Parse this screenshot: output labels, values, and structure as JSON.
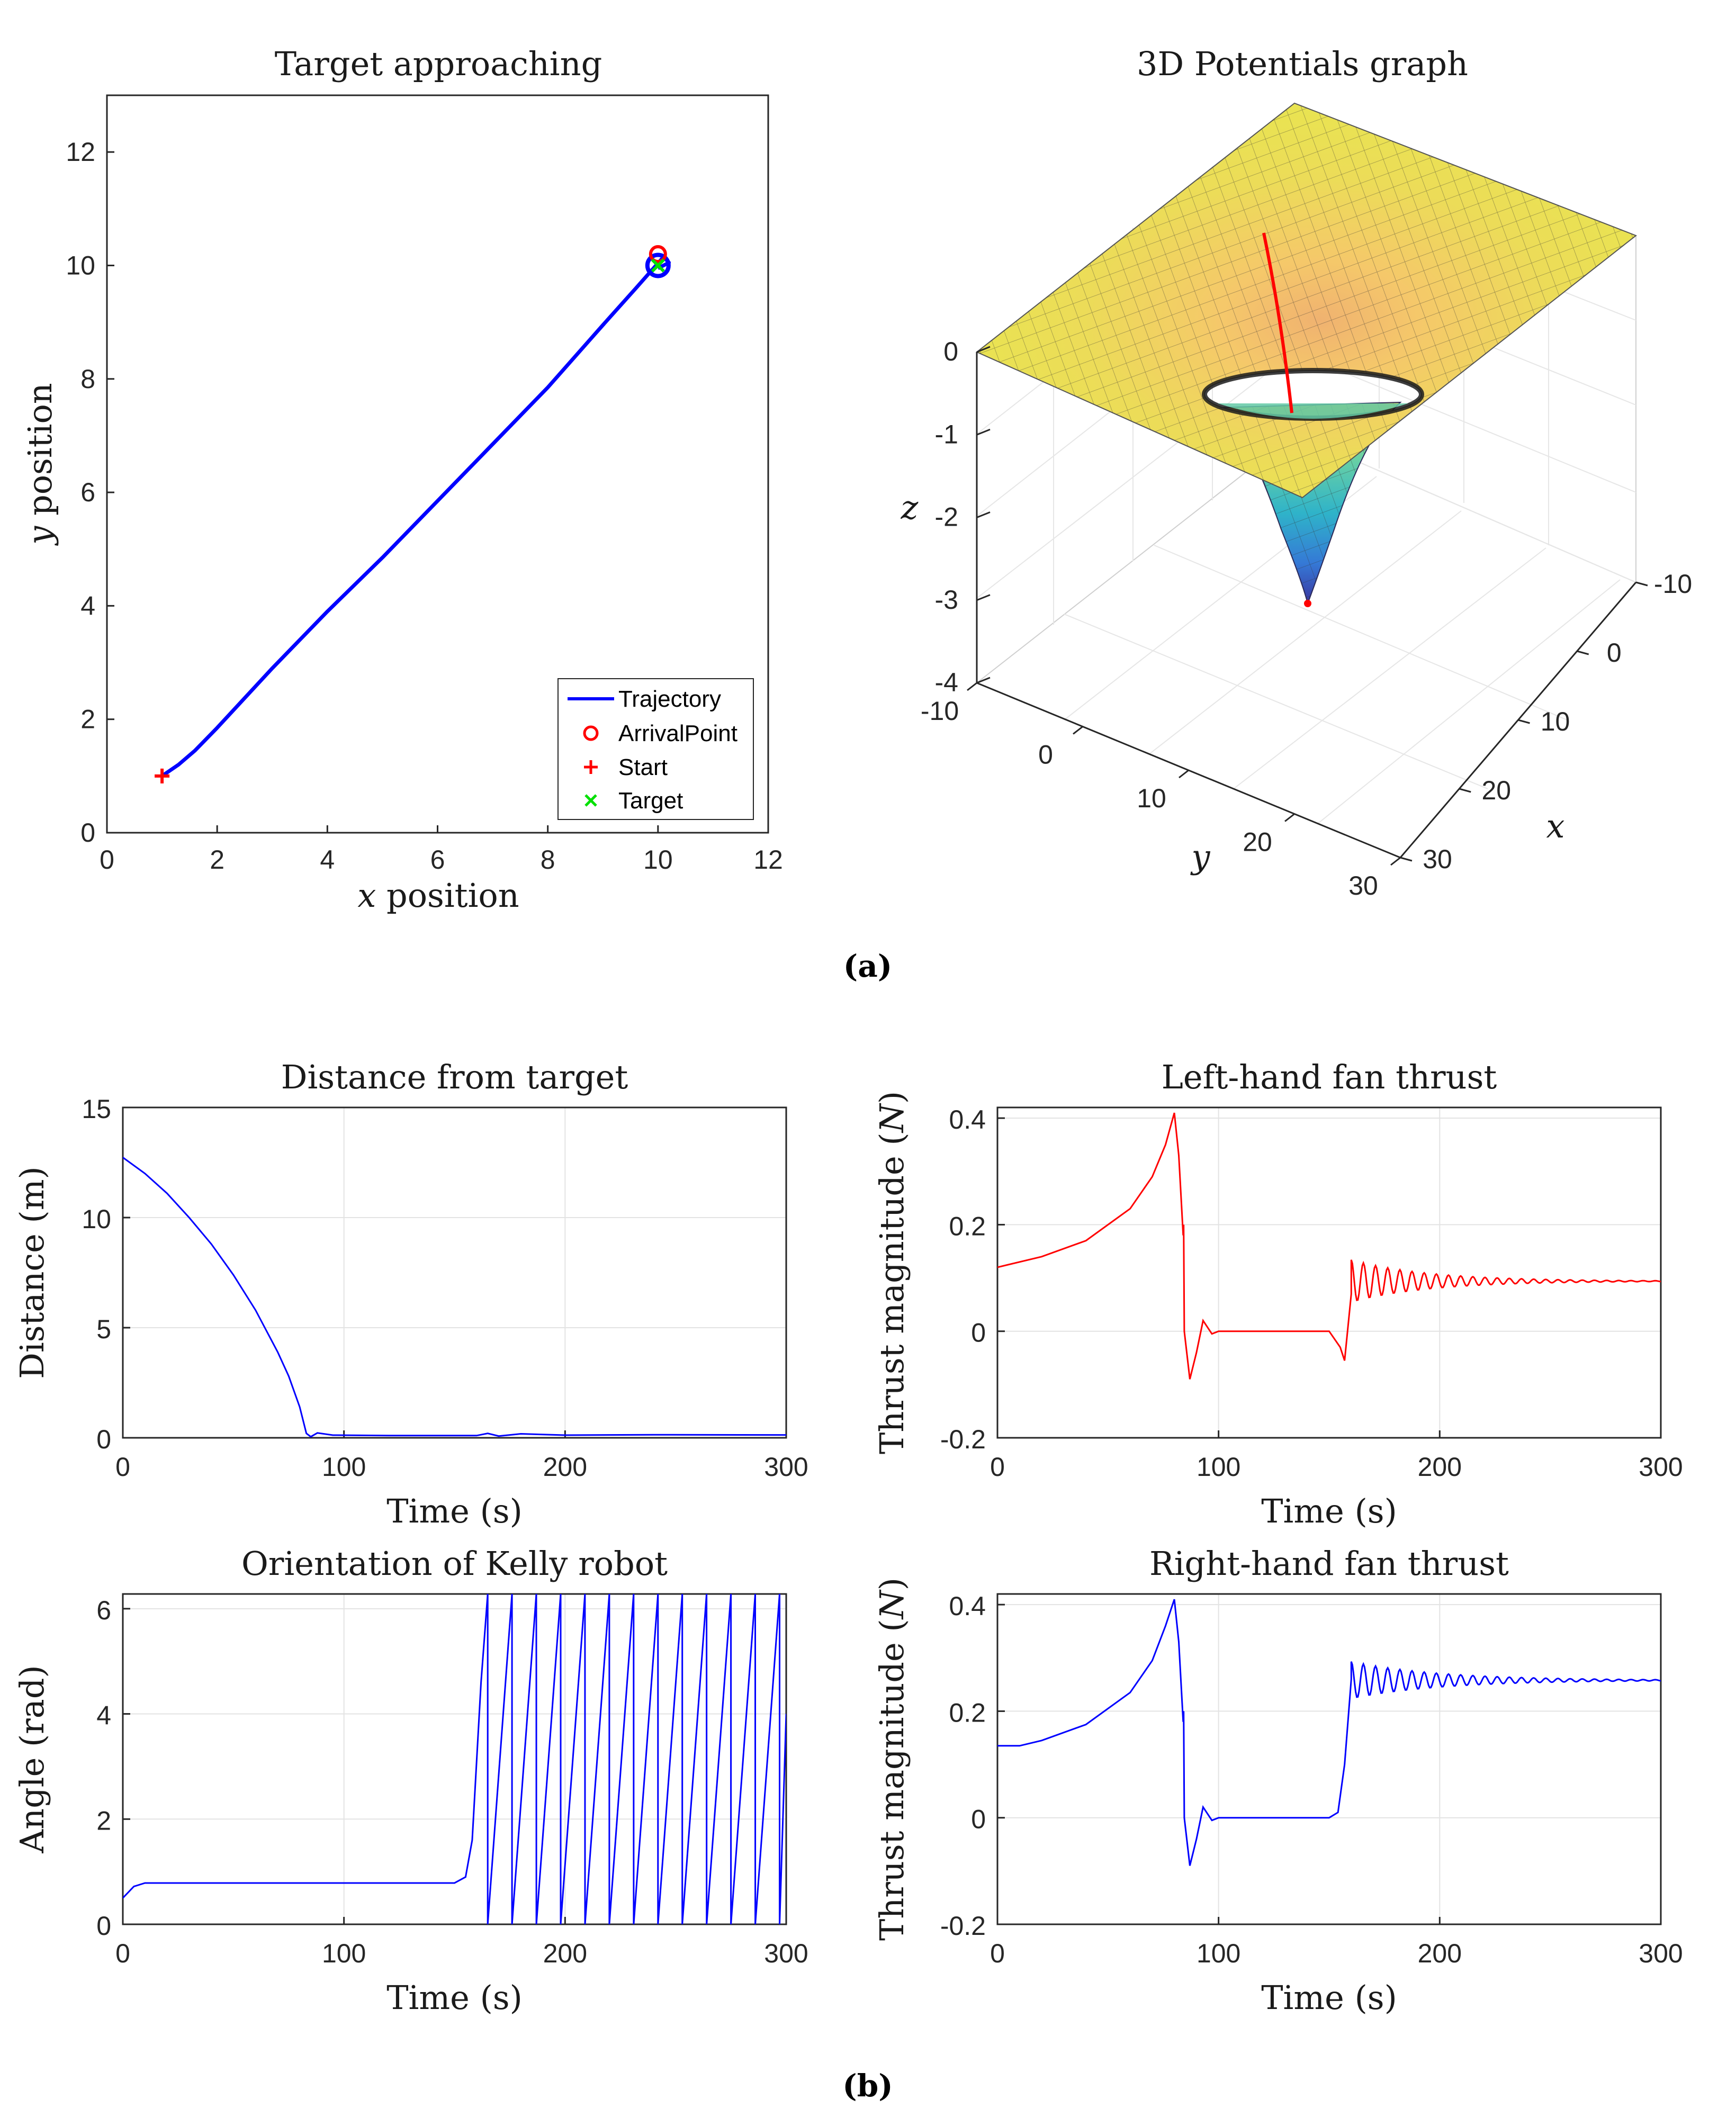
{
  "captions": {
    "a": "(a)",
    "b": "(b)"
  },
  "colors": {
    "blue": "#0000ff",
    "red": "#ff0000",
    "green": "#00e000",
    "surface_top": "#e6e04a",
    "surface_bottom": "#3d3db5"
  },
  "chart_data": [
    {
      "id": "target",
      "type": "line",
      "title": "Target approaching",
      "xlabel": "x position",
      "ylabel": "y position",
      "xlim": [
        0,
        12
      ],
      "ylim": [
        0,
        13
      ],
      "xticks": [
        0,
        2,
        4,
        6,
        8,
        10,
        12
      ],
      "yticks": [
        0,
        2,
        4,
        6,
        8,
        10,
        12
      ],
      "series": [
        {
          "name": "Trajectory",
          "color": "#0000ff",
          "x": [
            1,
            1.3,
            1.6,
            2.0,
            3,
            4,
            5,
            6,
            7,
            8,
            9,
            9.6,
            10.1,
            10.2,
            10.0
          ],
          "y": [
            1,
            1.2,
            1.45,
            1.85,
            2.9,
            3.9,
            4.85,
            5.85,
            6.85,
            7.85,
            8.95,
            9.6,
            10.15,
            10.05,
            9.95
          ]
        }
      ],
      "markers": [
        {
          "name": "ArrivalPoint",
          "symbol": "o",
          "color": "#ff0000",
          "x": 10.0,
          "y": 10.2
        },
        {
          "name": "Start",
          "symbol": "+",
          "color": "#ff0000",
          "x": 1,
          "y": 1
        },
        {
          "name": "Target",
          "symbol": "x",
          "color": "#00e000",
          "x": 10,
          "y": 10
        }
      ],
      "endpoint": {
        "symbol": "o",
        "color": "#0000ff",
        "x": 10,
        "y": 10
      },
      "legend": [
        "Trajectory",
        "ArrivalPoint",
        "Start",
        "Target"
      ],
      "legend_position": "bottom-right"
    },
    {
      "id": "potential",
      "type": "surface",
      "title": "3D Potentials graph",
      "xlabel": "x",
      "ylabel": "y",
      "zlabel": "z",
      "xlim": [
        -10,
        30
      ],
      "ylim": [
        -10,
        30
      ],
      "zlim": [
        -4,
        0
      ],
      "xticks": [
        -10,
        0,
        10,
        20,
        30
      ],
      "yticks": [
        -10,
        0,
        10,
        20,
        30
      ],
      "zticks": [
        0,
        -1,
        -2,
        -3,
        -4
      ],
      "minimum": {
        "x": 10,
        "y": 10,
        "z": -3.0
      },
      "path_color": "#ff0000"
    },
    {
      "id": "distance",
      "type": "line",
      "title": "Distance from target",
      "xlabel": "Time (s)",
      "ylabel": "Distance (m)",
      "xlim": [
        0,
        300
      ],
      "ylim": [
        0,
        15
      ],
      "xticks": [
        0,
        100,
        200,
        300
      ],
      "yticks": [
        0,
        5,
        10,
        15
      ],
      "series": [
        {
          "name": "distance",
          "color": "#0000ff",
          "x": [
            0,
            10,
            20,
            30,
            40,
            50,
            60,
            70,
            75,
            80,
            83,
            85,
            88,
            95,
            120,
            160,
            165,
            170,
            180,
            200,
            240,
            300
          ],
          "y": [
            12.73,
            12.0,
            11.1,
            10.0,
            8.8,
            7.4,
            5.8,
            3.9,
            2.8,
            1.4,
            0.2,
            0.05,
            0.22,
            0.12,
            0.1,
            0.1,
            0.2,
            0.08,
            0.18,
            0.12,
            0.14,
            0.13
          ]
        }
      ]
    },
    {
      "id": "left_thrust",
      "type": "line",
      "title": "Left-hand fan thrust",
      "xlabel": "Time (s)",
      "ylabel": "Thrust magnitude (N)",
      "xlim": [
        0,
        300
      ],
      "ylim": [
        -0.2,
        0.42
      ],
      "xticks": [
        0,
        100,
        200,
        300
      ],
      "yticks": [
        -0.2,
        0,
        0.2,
        0.4
      ],
      "ytick_labels": [
        "-0.2",
        "0",
        "0.2",
        "0.4"
      ],
      "series": [
        {
          "name": "left",
          "color": "#ff0000",
          "x": [
            0,
            20,
            40,
            60,
            70,
            76,
            80,
            82,
            84,
            84.2,
            84.5,
            87,
            90,
            93,
            97,
            100,
            150,
            155,
            157,
            160
          ],
          "y": [
            0.12,
            0.14,
            0.17,
            0.23,
            0.29,
            0.35,
            0.41,
            0.33,
            0.18,
            0.2,
            0.0,
            -0.09,
            -0.04,
            0.02,
            -0.005,
            0.0,
            0.0,
            -0.03,
            -0.055,
            0.07
          ]
        }
      ],
      "oscillation": {
        "start": 160,
        "end": 300,
        "mean": 0.094,
        "amp0": 0.04,
        "period": 5.5,
        "decay": 35
      }
    },
    {
      "id": "orientation",
      "type": "line",
      "title": "Orientation of Kelly robot",
      "xlabel": "Time (s)",
      "ylabel": "Angle (rad)",
      "xlim": [
        0,
        300
      ],
      "ylim": [
        0,
        6.28
      ],
      "xticks": [
        0,
        100,
        200,
        300
      ],
      "yticks": [
        0,
        2,
        4,
        6
      ],
      "series": [
        {
          "name": "angle",
          "color": "#0000ff",
          "x": [
            0,
            5,
            10,
            150,
            155,
            158,
            162,
            165
          ],
          "y": [
            0.5,
            0.72,
            0.785,
            0.785,
            0.9,
            1.6,
            4.6,
            6.28
          ]
        }
      ],
      "sawtooth": {
        "start": 165,
        "end": 300,
        "period": 11.0,
        "max": 6.28,
        "end_value": 4.0
      }
    },
    {
      "id": "right_thrust",
      "type": "line",
      "title": "Right-hand fan thrust",
      "xlabel": "Time (s)",
      "ylabel": "Thrust magnitude (N)",
      "xlim": [
        0,
        300
      ],
      "ylim": [
        -0.2,
        0.42
      ],
      "xticks": [
        0,
        100,
        200,
        300
      ],
      "yticks": [
        -0.2,
        0,
        0.2,
        0.4
      ],
      "ytick_labels": [
        "-0.2",
        "0",
        "0.2",
        "0.4"
      ],
      "series": [
        {
          "name": "right",
          "color": "#0000ff",
          "x": [
            0,
            10,
            20,
            40,
            60,
            70,
            76,
            80,
            82,
            84,
            84.2,
            84.5,
            87,
            90,
            93,
            97,
            100,
            150,
            154,
            157,
            160
          ],
          "y": [
            0.135,
            0.135,
            0.145,
            0.175,
            0.235,
            0.295,
            0.36,
            0.41,
            0.33,
            0.18,
            0.2,
            0.0,
            -0.09,
            -0.04,
            0.02,
            -0.005,
            0.0,
            0.0,
            0.01,
            0.1,
            0.26
          ]
        }
      ],
      "oscillation": {
        "start": 160,
        "end": 300,
        "mean": 0.258,
        "amp0": 0.035,
        "period": 5.5,
        "decay": 40
      }
    }
  ]
}
